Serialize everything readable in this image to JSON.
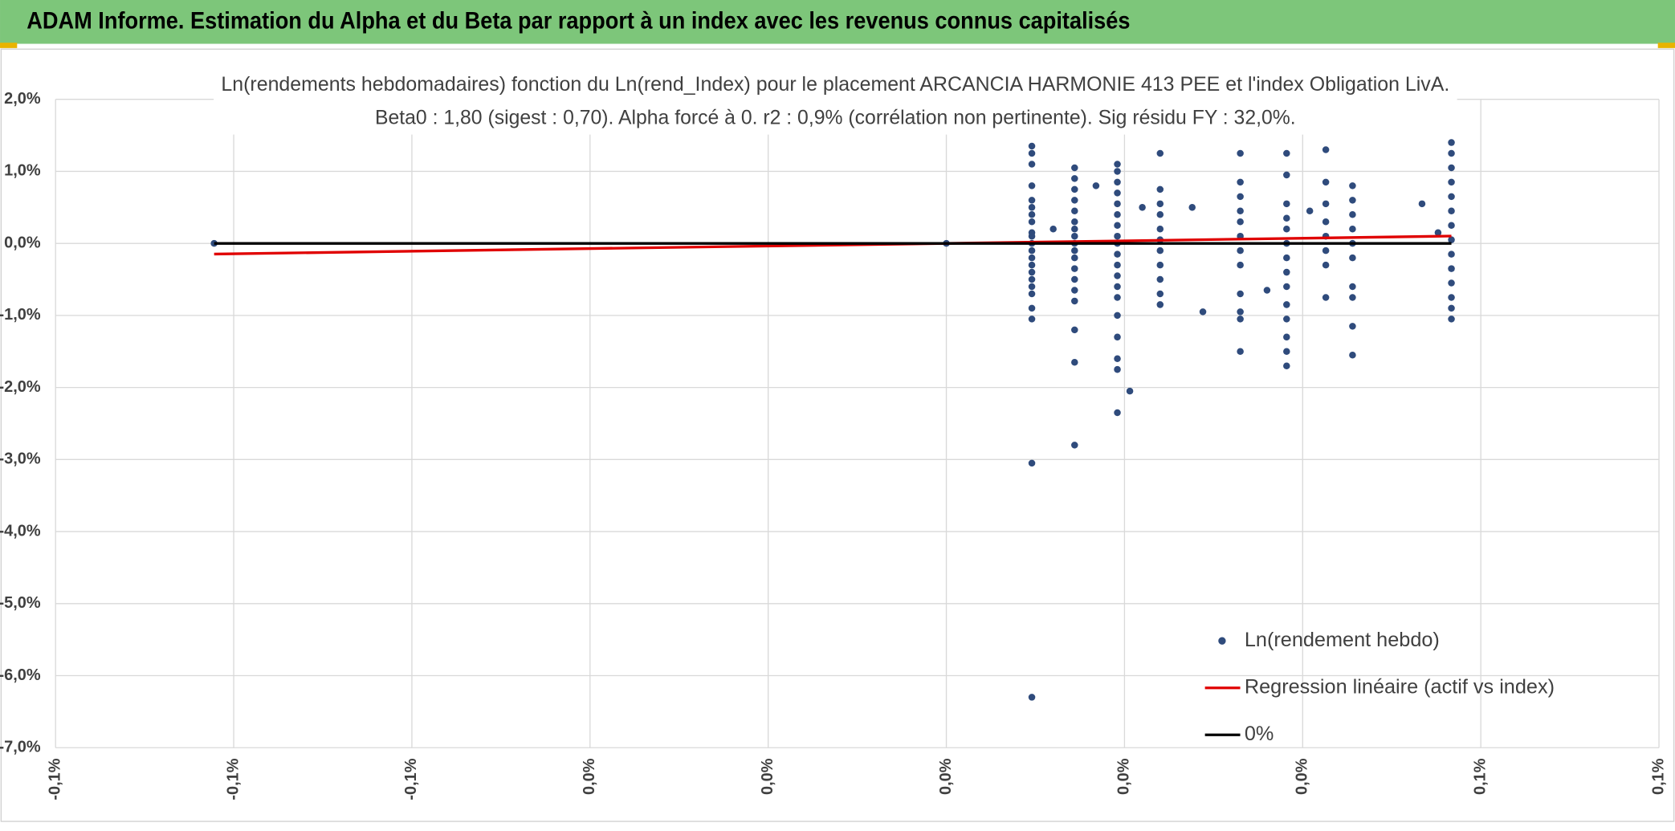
{
  "header": {
    "title": "ADAM Informe. Estimation du Alpha et du Beta par rapport à un index avec les revenus connus capitalisés"
  },
  "chart_data": {
    "type": "scatter",
    "title": "Ln(rendements hebdomadaires) fonction du Ln(rend_Index) pour le placement ARCANCIA HARMONIE 413 PEE et l'index Obligation LivA.",
    "subtitle": "Beta0 : 1,80 (sigest : 0,70). Alpha forcé à 0. r2 : 0,9% (corrélation non pertinente). Sig résidu FY : 32,0%.",
    "xlim": [
      -0.1,
      0.08
    ],
    "xticks": [
      {
        "value": -0.1,
        "label": "-0,1%"
      },
      {
        "value": -0.08,
        "label": "-0,1%"
      },
      {
        "value": -0.06,
        "label": "-0,1%"
      },
      {
        "value": -0.04,
        "label": "0,0%"
      },
      {
        "value": -0.02,
        "label": "0,0%"
      },
      {
        "value": 0,
        "label": "0,0%"
      },
      {
        "value": 0.02,
        "label": "0,0%"
      },
      {
        "value": 0.04,
        "label": "0,0%"
      },
      {
        "value": 0.06,
        "label": "0,1%"
      },
      {
        "value": 0.08,
        "label": "0,1%"
      }
    ],
    "ylim": [
      -7,
      2
    ],
    "yticks": [
      {
        "value": 2,
        "label": "2,0%"
      },
      {
        "value": 1,
        "label": "1,0%"
      },
      {
        "value": 0,
        "label": "0,0%"
      },
      {
        "value": -1,
        "label": "-1,0%"
      },
      {
        "value": -2,
        "label": "-2,0%"
      },
      {
        "value": -3,
        "label": "-3,0%"
      },
      {
        "value": -4,
        "label": "-4,0%"
      },
      {
        "value": -5,
        "label": "-5,0%"
      },
      {
        "value": -6,
        "label": "-6,0%"
      },
      {
        "value": -7,
        "label": "-7,0%"
      }
    ],
    "grid": true,
    "legend": "lower right",
    "series": [
      {
        "name": "Ln(rendement hebdo)",
        "type": "scatter",
        "color": "#2f4b7c",
        "x": [
          0.0096,
          0.0096,
          0.0096,
          0.0096,
          0.0096,
          0.0096,
          0.0096,
          0.0096,
          0.0096,
          0.0096,
          0.0096,
          0.0096,
          0.0096,
          0.0096,
          0.0096,
          0.0096,
          0.0096,
          0.0096,
          0.0096,
          0.0096,
          0.0096,
          0.0096,
          0.0144,
          0.0144,
          0.0144,
          0.0144,
          0.0144,
          0.0144,
          0.0144,
          0.0144,
          0.0144,
          0.0144,
          0.0144,
          0.0144,
          0.0144,
          0.0144,
          0.0144,
          0.0144,
          0.0144,
          0.0144,
          0.0192,
          0.0192,
          0.0192,
          0.0192,
          0.0192,
          0.0192,
          0.0192,
          0.0192,
          0.0192,
          0.0192,
          0.0192,
          0.0192,
          0.0192,
          0.0192,
          0.0192,
          0.0192,
          0.0192,
          0.0192,
          0.0192,
          0.024,
          0.024,
          0.024,
          0.024,
          0.024,
          0.024,
          0.024,
          0.024,
          0.024,
          0.024,
          0.024,
          0.033,
          0.033,
          0.033,
          0.033,
          0.033,
          0.033,
          0.033,
          0.033,
          0.033,
          0.033,
          0.033,
          0.033,
          0.0382,
          0.0382,
          0.0382,
          0.0382,
          0.0382,
          0.0382,
          0.0382,
          0.0382,
          0.0382,
          0.0382,
          0.0382,
          0.0382,
          0.0382,
          0.0382,
          0.0426,
          0.0426,
          0.0426,
          0.0426,
          0.0426,
          0.0426,
          0.0426,
          0.0426,
          0.0456,
          0.0456,
          0.0456,
          0.0456,
          0.0456,
          0.0456,
          0.0456,
          0.0456,
          0.0456,
          0.0456,
          0.0567,
          0.0567,
          0.0567,
          0.0567,
          0.0567,
          0.0567,
          0.0567,
          0.0567,
          0.0567,
          0.0567,
          0.0567,
          0.0567,
          0.0567,
          0.0567,
          -0.0822,
          0,
          0.012,
          0.0168,
          0.0206,
          0.022,
          0.0276,
          0.0288,
          0.036,
          0.0408,
          0.0534,
          0.0552
        ],
        "values": [
          1.35,
          1.25,
          1.1,
          0.8,
          0.6,
          0.5,
          0.4,
          0.3,
          0.15,
          0.1,
          0,
          -0.1,
          -0.2,
          -0.3,
          -0.4,
          -0.5,
          -0.6,
          -0.7,
          -0.9,
          -1.05,
          -3.05,
          -6.3,
          1.05,
          0.9,
          0.75,
          0.6,
          0.45,
          0.3,
          0.2,
          0.1,
          0,
          -0.1,
          -0.2,
          -0.35,
          -0.5,
          -0.65,
          -0.8,
          -1.2,
          -1.65,
          -2.8,
          1.1,
          1.0,
          0.85,
          0.7,
          0.55,
          0.4,
          0.25,
          0.1,
          0,
          -0.15,
          -0.3,
          -0.45,
          -0.6,
          -0.75,
          -1.0,
          -1.3,
          -1.6,
          -1.75,
          -2.35,
          1.25,
          0.75,
          0.55,
          0.4,
          0.2,
          0.05,
          -0.1,
          -0.3,
          -0.5,
          -0.7,
          -0.85,
          1.25,
          0.85,
          0.65,
          0.45,
          0.3,
          0.1,
          -0.1,
          -0.3,
          -0.7,
          -0.95,
          -1.05,
          -1.5,
          1.25,
          0.95,
          0.55,
          0.35,
          0.2,
          0,
          -0.2,
          -0.4,
          -0.6,
          -0.85,
          -1.05,
          -1.3,
          -1.5,
          -1.7,
          1.3,
          0.85,
          0.55,
          0.3,
          0.1,
          -0.1,
          -0.3,
          -0.75,
          0.8,
          0.6,
          0.4,
          0.2,
          0,
          -0.2,
          -0.6,
          -0.75,
          -1.15,
          -1.55,
          1.4,
          1.25,
          1.05,
          0.85,
          0.65,
          0.45,
          0.25,
          0.05,
          -0.15,
          -0.35,
          -0.55,
          -0.75,
          -0.9,
          -1.05,
          0,
          0,
          0.2,
          0.8,
          -2.05,
          0.5,
          0.5,
          -0.95,
          -0.65,
          0.45,
          0.55,
          0.15
        ]
      },
      {
        "name": "Regression linéaire (actif vs index)",
        "type": "line",
        "color": "#e00000",
        "x": [
          -0.0822,
          0.0567
        ],
        "values": [
          -0.148,
          0.102
        ]
      },
      {
        "name": "0%",
        "type": "line",
        "color": "#000000",
        "x": [
          -0.0822,
          0.0567
        ],
        "values": [
          0,
          0
        ]
      }
    ]
  }
}
